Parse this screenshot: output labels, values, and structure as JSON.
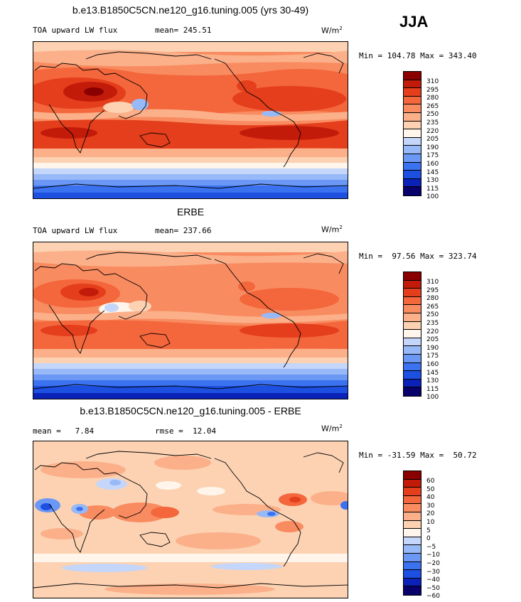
{
  "season": "JJA",
  "units": {
    "base": "W/m",
    "exp": "2"
  },
  "colors": [
    "#08006b",
    "#0a22b8",
    "#1d4fe0",
    "#3b72f0",
    "#6b98f5",
    "#98b9f7",
    "#c4d6fa",
    "#fff5ea",
    "#fcd2b3",
    "#fbb08a",
    "#f98b60",
    "#f4663b",
    "#e43e1c",
    "#c21b0a",
    "#8a0000"
  ],
  "panel1": {
    "title": "b.e13.B1850C5CN.ne120_g16.tuning.005 (yrs 30-49)",
    "left_label": "TOA upward LW flux",
    "mean_text": "mean= 245.51",
    "minmax": "Min = 104.78 Max = 343.40",
    "levels": [
      "310",
      "295",
      "280",
      "265",
      "250",
      "235",
      "220",
      "205",
      "190",
      "175",
      "160",
      "145",
      "130",
      "115",
      "100"
    ]
  },
  "panel2": {
    "title": "ERBE",
    "left_label": "TOA upward LW flux",
    "mean_text": "mean= 237.66",
    "minmax": "Min =  97.56 Max = 323.74",
    "levels": [
      "310",
      "295",
      "280",
      "265",
      "250",
      "235",
      "220",
      "205",
      "190",
      "175",
      "160",
      "145",
      "130",
      "115",
      "100"
    ]
  },
  "panel3": {
    "title": "b.e13.B1850C5CN.ne120_g16.tuning.005 - ERBE",
    "mean_text": "mean =   7.84",
    "rmse_text": "rmse =  12.04",
    "minmax": "Min = -31.59 Max =  50.72",
    "levels": [
      "60",
      "50",
      "40",
      "30",
      "20",
      "10",
      "5",
      "0",
      "−5",
      "−10",
      "−20",
      "−30",
      "−40",
      "−50",
      "−60"
    ]
  }
}
